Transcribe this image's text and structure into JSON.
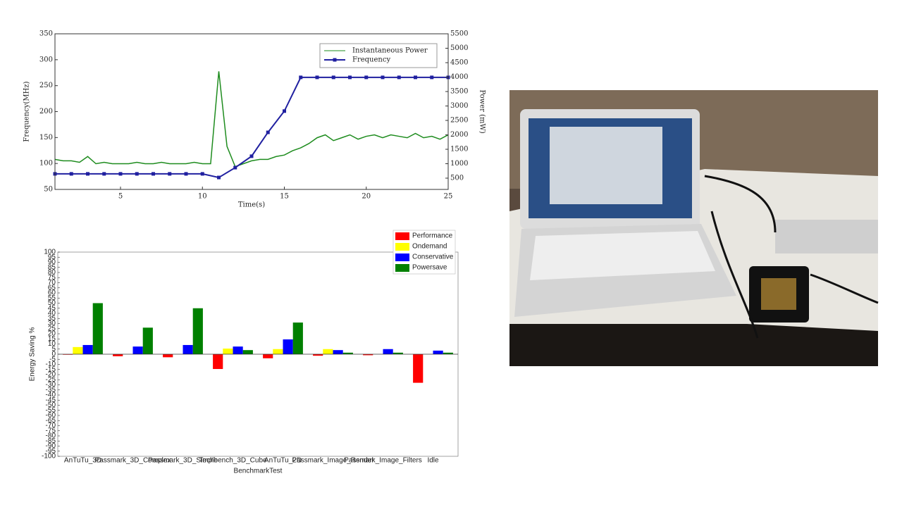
{
  "chart_data": [
    {
      "type": "line",
      "xlabel": "Time(s)",
      "ylabel": "Frequency(MHz)",
      "y2label": "Power (mW)",
      "xlim": [
        1,
        25
      ],
      "xticks": [
        5,
        10,
        15,
        20,
        25
      ],
      "ylim": [
        50,
        350
      ],
      "yticks": [
        50,
        100,
        150,
        200,
        250,
        300,
        350
      ],
      "y2lim": [
        110,
        5500
      ],
      "y2ticks": [
        500,
        1000,
        1500,
        2000,
        2500,
        3000,
        3500,
        4000,
        4500,
        5000,
        5500
      ],
      "legend": "upper right",
      "series": [
        {
          "name": "Instantaneous Power",
          "color": "#1e8c1e",
          "axis": "y2",
          "x": [
            1,
            1.5,
            2,
            2.5,
            3,
            3.5,
            4,
            4.5,
            5,
            5.5,
            6,
            6.5,
            7,
            7.5,
            8,
            8.5,
            9,
            9.5,
            10,
            10.5,
            11,
            11.5,
            12,
            12.5,
            13,
            13.5,
            14,
            14.5,
            15,
            15.5,
            16,
            16.5,
            17,
            17.5,
            18,
            18.5,
            19,
            19.5,
            20,
            20.5,
            21,
            21.5,
            22,
            22.5,
            23,
            23.5,
            24,
            24.5,
            25
          ],
          "values": [
            1150,
            1100,
            1100,
            1050,
            1250,
            1000,
            1050,
            1000,
            1000,
            1000,
            1050,
            1000,
            1000,
            1050,
            1000,
            1000,
            1000,
            1050,
            1000,
            1000,
            4200,
            1600,
            900,
            1000,
            1100,
            1150,
            1150,
            1250,
            1300,
            1450,
            1550,
            1700,
            1900,
            2000,
            1800,
            1900,
            2000,
            1850,
            1950,
            2000,
            1900,
            2000,
            1950,
            1900,
            2050,
            1900,
            1950,
            1850,
            2000
          ]
        },
        {
          "name": "Frequency",
          "color": "#2020a0",
          "x": [
            1,
            2,
            3,
            4,
            5,
            6,
            7,
            8,
            9,
            10,
            11,
            12,
            13,
            14,
            15,
            16,
            17,
            18,
            19,
            20,
            21,
            22,
            23,
            24,
            25
          ],
          "values": [
            80,
            80,
            80,
            80,
            80,
            80,
            80,
            80,
            80,
            80,
            73,
            92,
            114,
            160,
            201,
            266,
            266,
            266,
            266,
            266,
            266,
            266,
            266,
            266,
            266
          ]
        }
      ]
    },
    {
      "type": "bar",
      "xlabel": "BenchmarkTest",
      "ylabel": "Energy Saving %",
      "categories": [
        "AnTuTu_3D",
        "Passmark_3D_Complex",
        "Passmark_3D_Simple",
        "Techbench_3D_Cube",
        "AnTuTu_2D",
        "Passmark_Image_Render",
        "Passmark_Image_Filters",
        "Idle"
      ],
      "ylim": [
        -100,
        100
      ],
      "yticks": [
        -100,
        -95,
        -90,
        -85,
        -80,
        -75,
        -70,
        -65,
        -60,
        -55,
        -50,
        -45,
        -40,
        -35,
        -30,
        -25,
        -20,
        -15,
        -10,
        -5,
        0,
        5,
        10,
        15,
        20,
        25,
        30,
        35,
        40,
        45,
        50,
        55,
        60,
        65,
        70,
        75,
        80,
        85,
        90,
        95,
        100
      ],
      "legend": "outside upper right",
      "series": [
        {
          "name": "Performance",
          "color": "#ff0000",
          "values": [
            -0.5,
            -2,
            -3,
            -14.5,
            -4,
            -1.5,
            -1,
            -28
          ]
        },
        {
          "name": "Ondemand",
          "color": "#ffff00",
          "values": [
            7,
            0,
            0,
            5.5,
            5,
            5,
            0,
            0
          ]
        },
        {
          "name": "Conservative",
          "color": "#0000ff",
          "values": [
            9,
            7.5,
            9,
            7.5,
            14.5,
            4,
            5,
            3.5
          ]
        },
        {
          "name": "Powersave",
          "color": "#008000",
          "values": [
            50,
            26,
            45,
            4,
            31,
            1.5,
            1.5,
            1.5
          ]
        }
      ]
    }
  ]
}
